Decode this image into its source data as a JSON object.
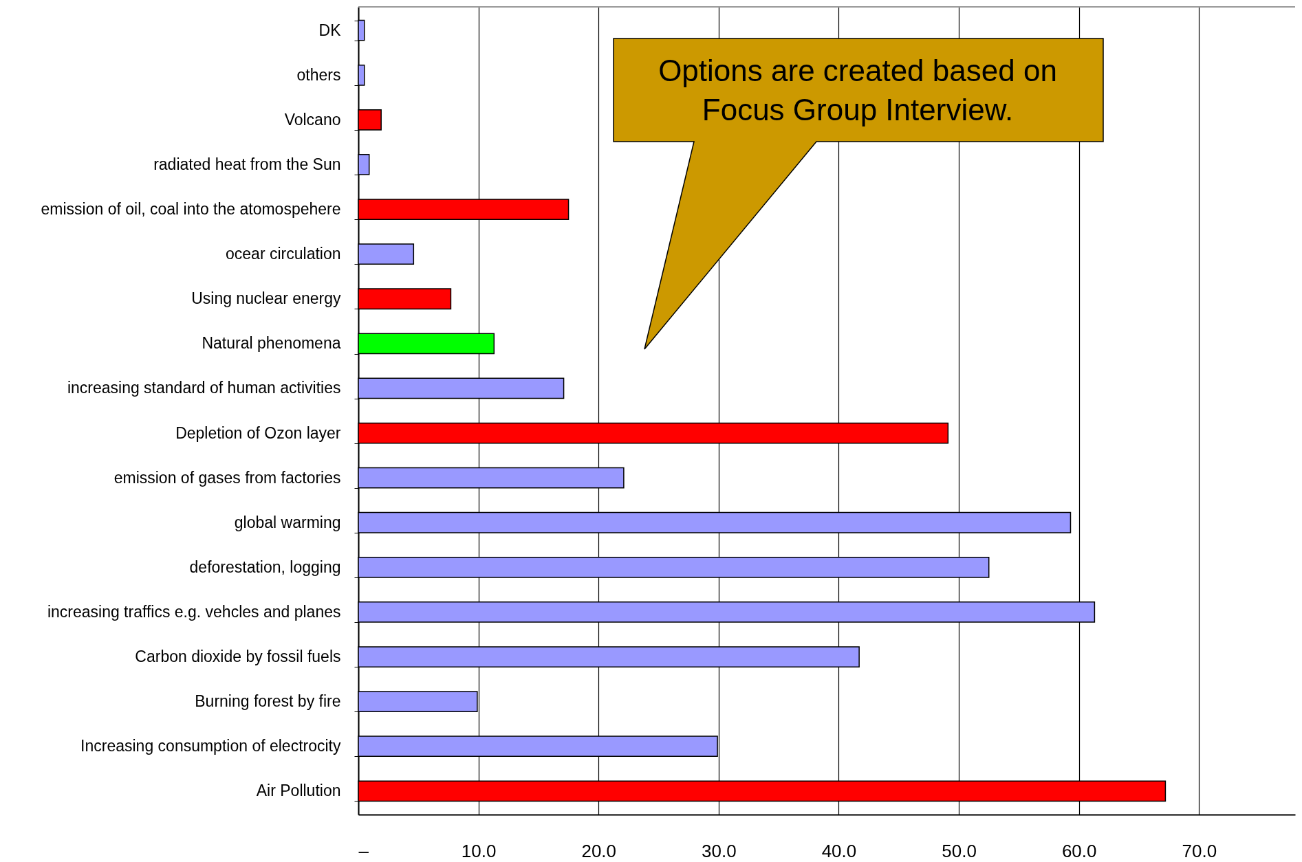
{
  "chart_data": {
    "type": "bar",
    "orientation": "horizontal",
    "categories": [
      "DK",
      "others",
      "Volcano",
      "radiated heat from the Sun",
      "emission of oil, coal into the atomospehere",
      "ocear circulation",
      "Using nuclear energy",
      "Natural phenomena",
      "increasing standard of human activities",
      "Depletion of Ozon layer",
      "emission of gases from factories",
      "global warming",
      "deforestation, logging",
      "increasing traffics e.g. vehcles and planes",
      "Carbon dioxide by fossil fuels",
      "Burning forest by fire",
      "Increasing consumption of electrocity",
      "Air Pollution"
    ],
    "values": [
      0.5,
      0.5,
      1.9,
      0.9,
      17.5,
      4.6,
      7.7,
      11.3,
      17.1,
      49.1,
      22.1,
      59.3,
      52.5,
      61.3,
      41.7,
      9.9,
      29.9,
      67.2
    ],
    "colors": [
      "#9999ff",
      "#9999ff",
      "#ff0000",
      "#9999ff",
      "#ff0000",
      "#9999ff",
      "#ff0000",
      "#00ff00",
      "#9999ff",
      "#ff0000",
      "#9999ff",
      "#9999ff",
      "#9999ff",
      "#9999ff",
      "#9999ff",
      "#9999ff",
      "#9999ff",
      "#ff0000"
    ],
    "xlim": [
      0,
      78
    ],
    "xticks": [
      {
        "value": 0,
        "label": "–"
      },
      {
        "value": 10,
        "label": "10.0"
      },
      {
        "value": 20,
        "label": "20.0"
      },
      {
        "value": 30,
        "label": "30.0"
      },
      {
        "value": 40,
        "label": "40.0"
      },
      {
        "value": 50,
        "label": "50.0"
      },
      {
        "value": 60,
        "label": "60.0"
      },
      {
        "value": 70,
        "label": "70.0"
      }
    ],
    "grid": "x",
    "annotations": [
      "Options are created based on Focus Group Interview."
    ]
  }
}
